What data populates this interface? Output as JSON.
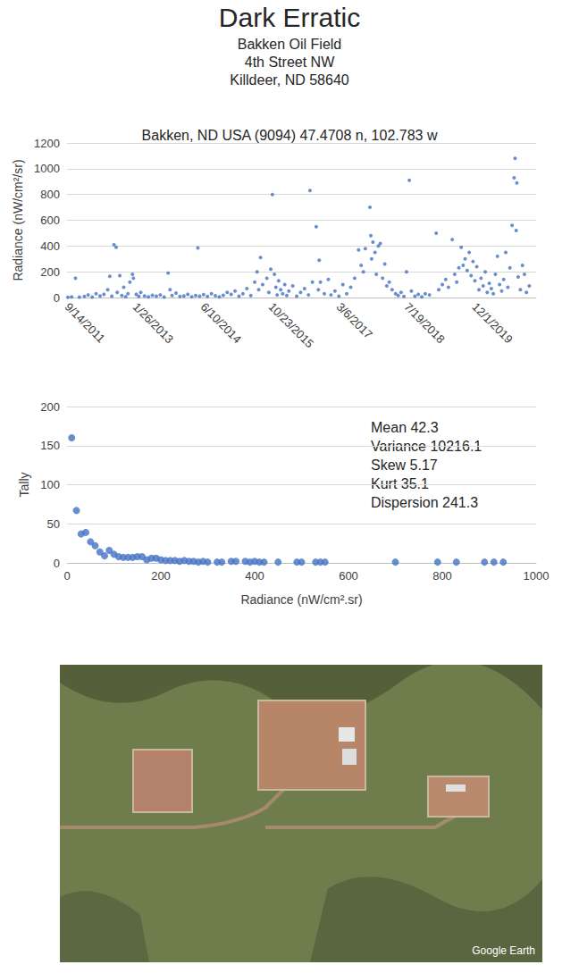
{
  "title": "Dark Erratic",
  "subtitle": [
    "Bakken Oil Field",
    "4th Street NW",
    "Killdeer, ND 58640"
  ],
  "chart_data": [
    {
      "type": "scatter",
      "title": "Bakken, ND USA (9094) 47.4708 n, 102.783 w",
      "y_label": "Radiance (nW/cm²/sr)",
      "x": [
        "2011-09-20",
        "2011-10-18",
        "2011-11-15",
        "2011-12-14",
        "2012-01-20",
        "2012-02-17",
        "2012-03-18",
        "2012-04-15",
        "2012-05-14",
        "2012-06-12",
        "2012-07-10",
        "2012-07-25",
        "2012-08-09",
        "2012-08-25",
        "2012-09-10",
        "2012-09-18",
        "2012-10-07",
        "2012-10-22",
        "2012-11-05",
        "2012-11-19",
        "2012-12-06",
        "2012-12-20",
        "2013-01-08",
        "2013-01-15",
        "2013-02-05",
        "2013-02-24",
        "2013-03-10",
        "2013-04-07",
        "2013-05-06",
        "2013-06-04",
        "2013-07-03",
        "2013-08-01",
        "2013-08-30",
        "2013-09-28",
        "2013-10-12",
        "2013-10-27",
        "2013-11-25",
        "2013-12-24",
        "2014-01-22",
        "2014-02-20",
        "2014-03-21",
        "2014-04-19",
        "2014-05-05",
        "2014-05-18",
        "2014-06-16",
        "2014-07-15",
        "2014-08-13",
        "2014-09-11",
        "2014-10-10",
        "2014-11-08",
        "2014-12-07",
        "2015-01-05",
        "2015-02-03",
        "2015-03-04",
        "2015-04-02",
        "2015-05-01",
        "2015-05-30",
        "2015-06-28",
        "2015-07-15",
        "2015-07-27",
        "2015-08-10",
        "2015-08-25",
        "2015-09-25",
        "2015-10-10",
        "2015-10-24",
        "2015-11-05",
        "2015-11-20",
        "2015-12-01",
        "2015-12-10",
        "2015-12-21",
        "2016-01-05",
        "2016-01-20",
        "2016-02-04",
        "2016-02-19",
        "2016-03-05",
        "2016-04-03",
        "2016-05-02",
        "2016-05-31",
        "2016-06-29",
        "2016-07-28",
        "2016-08-08",
        "2016-08-26",
        "2016-09-23",
        "2016-10-09",
        "2016-10-15",
        "2016-10-24",
        "2016-11-22",
        "2016-12-21",
        "2017-01-10",
        "2017-02-08",
        "2017-03-09",
        "2017-04-07",
        "2017-05-06",
        "2017-06-04",
        "2017-07-03",
        "2017-08-01",
        "2017-08-20",
        "2017-09-05",
        "2017-09-20",
        "2017-10-24",
        "2017-10-30",
        "2017-11-05",
        "2017-11-15",
        "2017-11-30",
        "2017-12-10",
        "2017-12-25",
        "2018-01-08",
        "2018-01-25",
        "2018-02-10",
        "2018-02-25",
        "2018-03-15",
        "2018-04-05",
        "2018-05-01",
        "2018-05-20",
        "2018-06-10",
        "2018-07-01",
        "2018-07-20",
        "2018-08-10",
        "2018-08-25",
        "2018-09-20",
        "2018-10-15",
        "2018-11-10",
        "2018-12-05",
        "2019-01-05",
        "2019-02-24",
        "2019-03-15",
        "2019-04-10",
        "2019-05-05",
        "2019-05-25",
        "2019-06-22",
        "2019-07-10",
        "2019-07-25",
        "2019-08-10",
        "2019-08-27",
        "2019-09-10",
        "2019-09-25",
        "2019-10-10",
        "2019-10-25",
        "2019-11-08",
        "2019-11-22",
        "2019-12-06",
        "2019-12-20",
        "2020-01-05",
        "2020-01-20",
        "2020-02-05",
        "2020-02-20",
        "2020-03-06",
        "2020-03-21",
        "2020-04-05",
        "2020-04-20",
        "2020-05-05",
        "2020-05-20",
        "2020-06-05",
        "2020-06-20",
        "2020-07-05",
        "2020-07-20",
        "2020-08-05",
        "2020-08-20",
        "2020-09-05",
        "2020-09-20",
        "2020-09-27",
        "2020-10-05",
        "2020-10-10",
        "2020-10-20",
        "2020-11-05",
        "2020-11-20",
        "2020-12-05",
        "2020-12-20",
        "2021-01-10"
      ],
      "values": [
        2,
        5,
        150,
        3,
        8,
        20,
        4,
        30,
        12,
        25,
        60,
        165,
        10,
        410,
        390,
        40,
        170,
        15,
        80,
        6,
        30,
        120,
        180,
        150,
        25,
        8,
        40,
        12,
        5,
        18,
        10,
        20,
        3,
        190,
        60,
        15,
        35,
        8,
        12,
        25,
        6,
        15,
        385,
        10,
        22,
        8,
        30,
        14,
        5,
        18,
        40,
        25,
        50,
        10,
        30,
        70,
        15,
        120,
        200,
        60,
        310,
        100,
        150,
        40,
        220,
        800,
        180,
        80,
        20,
        130,
        60,
        30,
        100,
        15,
        50,
        90,
        10,
        40,
        70,
        20,
        830,
        120,
        550,
        60,
        290,
        120,
        30,
        140,
        20,
        50,
        10,
        100,
        30,
        80,
        150,
        370,
        250,
        200,
        380,
        700,
        480,
        300,
        430,
        350,
        180,
        400,
        420,
        150,
        260,
        90,
        120,
        60,
        30,
        15,
        40,
        8,
        200,
        910,
        50,
        10,
        25,
        5,
        30,
        20,
        500,
        60,
        100,
        140,
        80,
        450,
        180,
        120,
        230,
        390,
        250,
        300,
        210,
        350,
        170,
        280,
        130,
        240,
        60,
        150,
        90,
        200,
        40,
        110,
        70,
        30,
        180,
        320,
        100,
        50,
        140,
        350,
        80,
        230,
        560,
        930,
        1080,
        520,
        890,
        160,
        60,
        250,
        180,
        40,
        90
      ],
      "color": "#4472c4",
      "marker": "circle",
      "xlim": [
        "2011-09-14",
        "2021-03-01"
      ],
      "xticks": [
        {
          "value": "2011-09-14",
          "label": "9/14/2011"
        },
        {
          "value": "2013-01-26",
          "label": "1/26/2013"
        },
        {
          "value": "2014-06-10",
          "label": "6/10/2014"
        },
        {
          "value": "2015-10-23",
          "label": "10/23/2015"
        },
        {
          "value": "2017-03-06",
          "label": "3/6/2017"
        },
        {
          "value": "2018-07-19",
          "label": "7/19/2018"
        },
        {
          "value": "2019-12-01",
          "label": "12/1/2019"
        }
      ],
      "ylim": [
        0,
        1200
      ],
      "yticks": [
        0,
        200,
        400,
        600,
        800,
        1000,
        1200
      ],
      "grid": true
    },
    {
      "type": "scatter",
      "x_label": "Radiance (nW/cm².sr)",
      "y_label": "Tally",
      "x": [
        10,
        20,
        30,
        40,
        50,
        60,
        70,
        80,
        90,
        100,
        110,
        120,
        130,
        140,
        150,
        160,
        170,
        180,
        190,
        200,
        210,
        220,
        230,
        240,
        250,
        260,
        270,
        280,
        290,
        300,
        320,
        330,
        350,
        360,
        380,
        390,
        400,
        410,
        420,
        450,
        490,
        500,
        530,
        540,
        550,
        700,
        790,
        830,
        890,
        910,
        930
      ],
      "values": [
        160,
        67,
        37,
        39,
        27,
        22,
        14,
        9,
        16,
        11,
        8,
        7,
        7,
        7,
        8,
        8,
        4,
        6,
        6,
        4,
        3,
        3,
        3,
        2,
        3,
        2,
        2,
        1,
        2,
        1,
        1,
        1,
        2,
        2,
        2,
        1,
        2,
        1,
        1,
        1,
        1,
        1,
        1,
        1,
        1,
        1,
        1,
        1,
        1,
        1,
        1
      ],
      "color": "#4472c4",
      "marker": "circle",
      "xlim": [
        0,
        1000
      ],
      "xticks": [
        0,
        200,
        400,
        600,
        800,
        1000
      ],
      "ylim": [
        0,
        200
      ],
      "yticks": [
        0,
        50,
        100,
        150,
        200
      ],
      "grid": true,
      "annotations": [
        "Mean 42.3",
        "Variance 10216.1",
        "Skew 5.17",
        "Kurt 35.1",
        "Dispersion 241.3"
      ]
    }
  ],
  "image": {
    "label": "Google Earth"
  }
}
